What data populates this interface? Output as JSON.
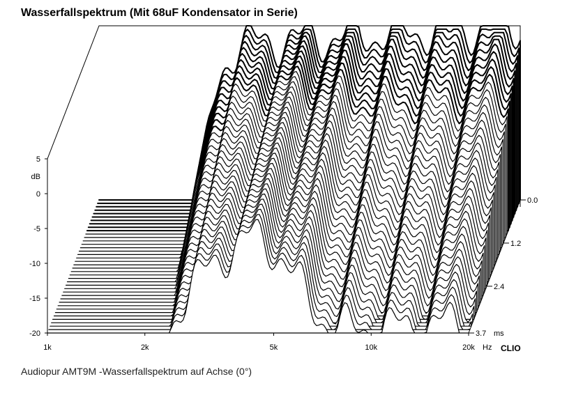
{
  "title": "Wasserfallspektrum (Mit 68uF Kondensator in Serie)",
  "caption": "Audiopur AMT9M -Wasserfallspektrum auf Achse (0°)",
  "brand": "CLIO",
  "chart_data": {
    "type": "waterfall",
    "title": "Wasserfallspektrum (Mit 68uF Kondensator in Serie)",
    "y_unit": "dB",
    "y_ticks": [
      "5",
      "dB",
      "0",
      "-5",
      "-10",
      "-15",
      "-20"
    ],
    "y_tick_values": [
      5,
      null,
      0,
      -5,
      -10,
      -15,
      -20
    ],
    "ylim": [
      -20,
      5
    ],
    "x_ticks": [
      "1k",
      "2k",
      "5k",
      "10k",
      "20k",
      "Hz"
    ],
    "x_tick_values": [
      1000,
      2000,
      5000,
      10000,
      20000,
      null
    ],
    "x_scale": "log",
    "xlim": [
      1000,
      20000
    ],
    "z_ticks": [
      "0.0",
      "1.2",
      "2.4",
      "3.7",
      "ms"
    ],
    "z_tick_values": [
      0.0,
      1.2,
      2.4,
      3.7,
      null
    ],
    "zlim": [
      0.0,
      3.7
    ],
    "z_unit": "ms",
    "slice_count": 40,
    "grid": false
  }
}
